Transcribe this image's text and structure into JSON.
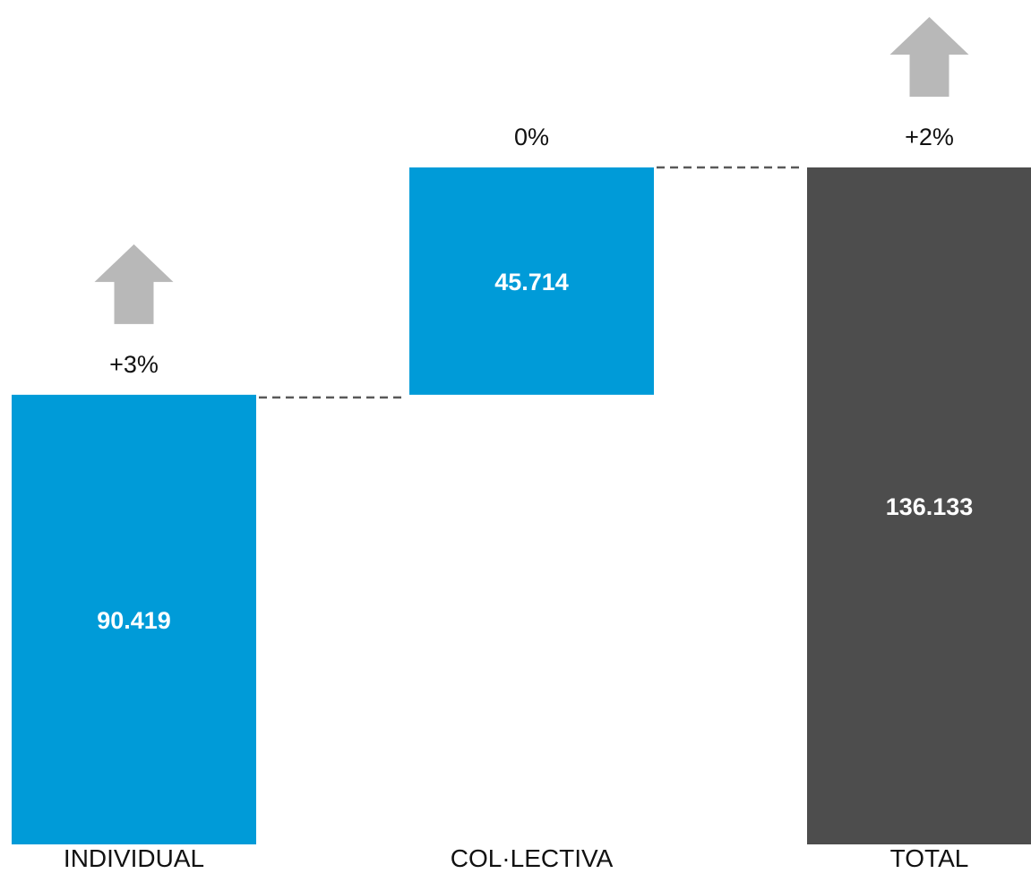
{
  "chart_data": {
    "type": "bar",
    "subtype": "waterfall",
    "categories": [
      "INDIVIDUAL",
      "COL·LECTIVA",
      "TOTAL"
    ],
    "values": [
      90419,
      45714,
      136133
    ],
    "value_labels": [
      "90.419",
      "45.714",
      "136.133"
    ],
    "changes": [
      "+3%",
      "0%",
      "+2%"
    ],
    "change_arrows": [
      "up",
      "none",
      "up"
    ],
    "kinds": [
      "step",
      "step",
      "total"
    ],
    "ylim": [
      0,
      136133
    ],
    "connectors": true,
    "legend": "none",
    "grid": false
  },
  "colors": {
    "step": "#009BD8",
    "total": "#4D4D4D",
    "arrow": "#B8B8B8",
    "connector": "#595959",
    "value_text": "#FFFFFF",
    "label_text": "#111111"
  },
  "icons": {
    "change_arrow": "up-arrow-icon"
  }
}
